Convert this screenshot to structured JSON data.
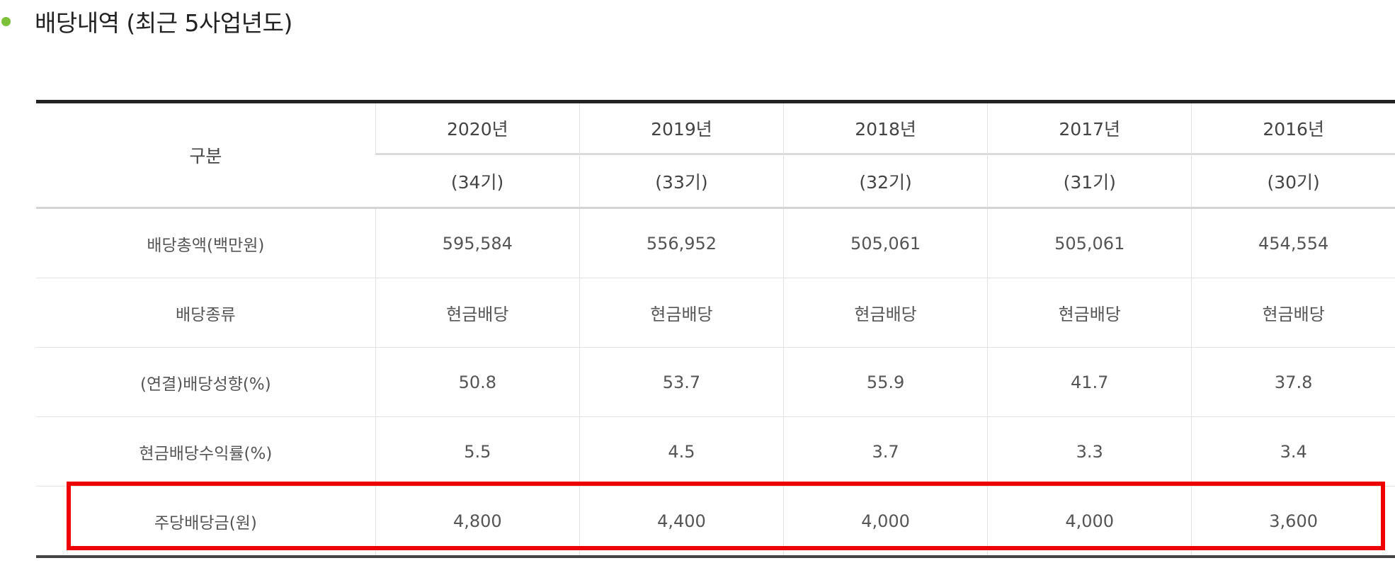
{
  "section": {
    "title": "배당내역 (최근 5사업년도)"
  },
  "table": {
    "header_label": "구분",
    "years": [
      "2020년",
      "2019년",
      "2018년",
      "2017년",
      "2016년"
    ],
    "terms": [
      "(34기)",
      "(33기)",
      "(32기)",
      "(31기)",
      "(30기)"
    ],
    "rows": [
      {
        "label": "배당총액(백만원)",
        "values": [
          "595,584",
          "556,952",
          "505,061",
          "505,061",
          "454,554"
        ]
      },
      {
        "label": "배당종류",
        "values": [
          "현금배당",
          "현금배당",
          "현금배당",
          "현금배당",
          "현금배당"
        ]
      },
      {
        "label": "(연결)배당성향(%)",
        "values": [
          "50.8",
          "53.7",
          "55.9",
          "41.7",
          "37.8"
        ]
      },
      {
        "label": "현금배당수익률(%)",
        "values": [
          "5.5",
          "4.5",
          "3.7",
          "3.3",
          "3.4"
        ]
      },
      {
        "label": "주당배당금(원)",
        "values": [
          "4,800",
          "4,400",
          "4,000",
          "4,000",
          "3,600"
        ]
      }
    ]
  },
  "colors": {
    "bullet": "#7cc13a",
    "highlight": "#ee0000",
    "top_rule": "#222222"
  }
}
